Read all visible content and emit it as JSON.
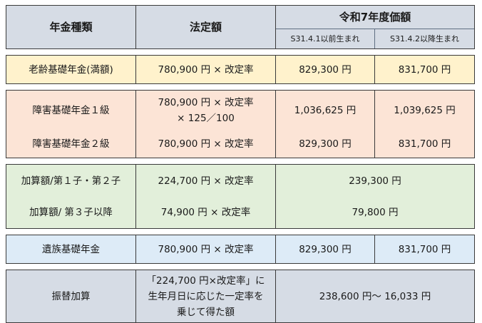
{
  "header": {
    "type_col": "年金種類",
    "legal_col": "法定額",
    "r7_col": "令和7年度価額",
    "before_col": "S31.4.1以前生まれ",
    "after_col": "S31.4.2以降生まれ"
  },
  "rows": {
    "old_age": {
      "name": "老齢基礎年金(満額)",
      "legal": "780,900 円 × 改定率",
      "before": "829,300 円",
      "after": "831,700 円"
    },
    "disability1": {
      "name": "障害基礎年金１級",
      "legal_line1": "780,900 円 × 改定率",
      "legal_line2": "× 125／100",
      "before": "1,036,625 円",
      "after": "1,039,625 円"
    },
    "disability2": {
      "name": "障害基礎年金２級",
      "legal": "780,900 円 × 改定率",
      "before": "829,300 円",
      "after": "831,700 円"
    },
    "addition12": {
      "name": "加算額/第１子・第２子",
      "legal": "224,700 円 × 改定率",
      "value": "239,300 円"
    },
    "addition3": {
      "name": "加算額/ 第３子以降",
      "legal": "74,900 円 × 改定率",
      "value": "79,800 円"
    },
    "survivor": {
      "name": "遺族基礎年金",
      "legal": "780,900 円 × 改定率",
      "before": "829,300 円",
      "after": "831,700 円"
    },
    "transfer": {
      "name": "振替加算",
      "legal_line1": "「224,700 円×改定率」に",
      "legal_line2": "生年月日に応じた一定率を",
      "legal_line3": "乗じて得た額",
      "value": "238,600 円～ 16,033 円"
    }
  },
  "colors": {
    "header": "#d6dce5",
    "yellow": "#fff2cc",
    "pink": "#fce4d6",
    "green": "#e2efda",
    "blue": "#ddebf7",
    "gray": "#d6dce5"
  }
}
